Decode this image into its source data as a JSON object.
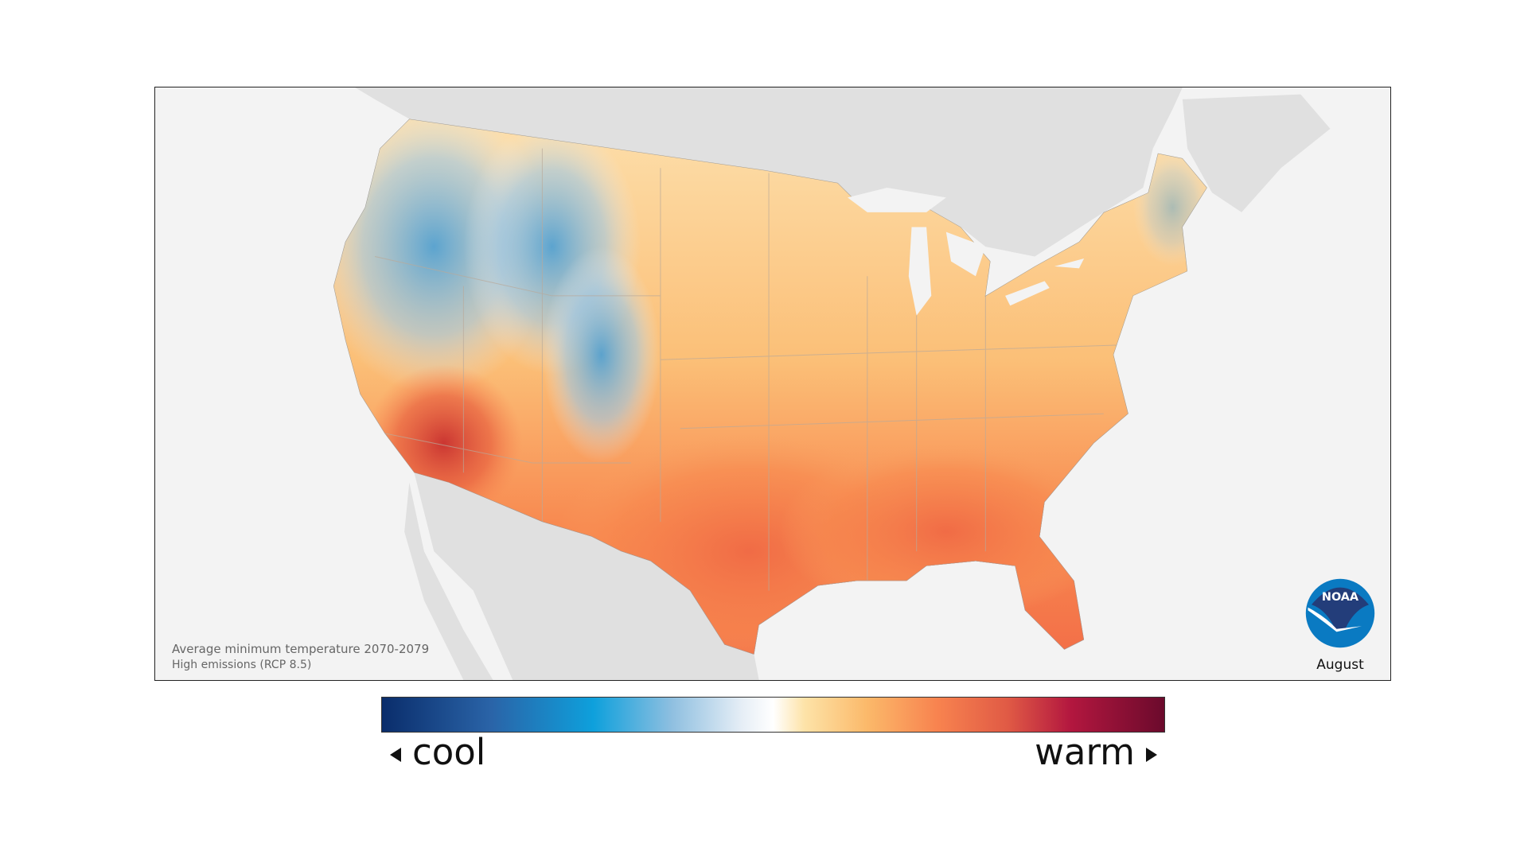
{
  "map": {
    "title": "Average minimum temperature 2070-2079",
    "subtitle": "High emissions (RCP 8.5)",
    "month": "August",
    "logo_text": "NOAA"
  },
  "legend": {
    "low_label": "cool",
    "high_label": "warm",
    "colors": [
      "#0a2d6b",
      "#2a64a8",
      "#0ea0dc",
      "#8ebfe0",
      "#ffffff",
      "#fde3a8",
      "#fbb96a",
      "#f8834f",
      "#e05a45",
      "#b3173f",
      "#6b0a2c"
    ]
  }
}
